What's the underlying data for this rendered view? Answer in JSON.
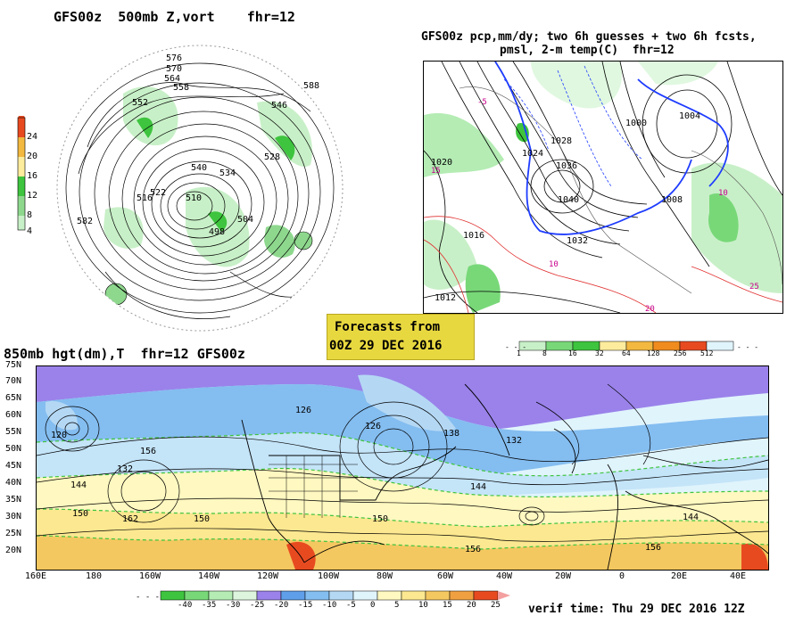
{
  "panel_500mb": {
    "title": "GFS00z  500mb Z,vort    fhr=12",
    "colorbar_ticks": [
      "24",
      "20",
      "16",
      "12",
      "8",
      "4"
    ],
    "contour_labels": [
      "576",
      "570",
      "564",
      "558",
      "552",
      "546",
      "540",
      "534",
      "528",
      "522",
      "516",
      "510",
      "504",
      "498",
      "582",
      "588"
    ]
  },
  "panel_precip": {
    "title_line1": "GFS00z pcp,mm/dy; two 6h guesses + two 6h fcsts,",
    "title_line2": "pmsl, 2-m temp(C)  fhr=12",
    "pressure_labels": [
      "1020",
      "1016",
      "1012",
      "1036",
      "1040",
      "1032",
      "1028",
      "1024",
      "1008",
      "1004",
      "1000"
    ],
    "colorbar_ticks": [
      "1",
      "8",
      "16",
      "32",
      "64",
      "128",
      "256",
      "512"
    ]
  },
  "forecast_box": {
    "line1": "Forecasts from",
    "line2": "00Z 29 DEC 2016"
  },
  "panel_850mb": {
    "title": "850mb hgt(dm),T  fhr=12 GFS00z",
    "lat_labels": [
      "75N",
      "70N",
      "65N",
      "60N",
      "55N",
      "50N",
      "45N",
      "40N",
      "35N",
      "30N",
      "25N",
      "20N"
    ],
    "lon_labels": [
      "160E",
      "180",
      "160W",
      "140W",
      "120W",
      "100W",
      "80W",
      "60W",
      "40W",
      "20W",
      "0",
      "20E",
      "40E"
    ],
    "height_labels": [
      "120",
      "126",
      "132",
      "138",
      "144",
      "150",
      "156",
      "162"
    ],
    "colorbar_ticks": [
      "-40",
      "-35",
      "-30",
      "-25",
      "-20",
      "-15",
      "-10",
      "-5",
      "0",
      "5",
      "10",
      "15",
      "20",
      "25"
    ],
    "colors": [
      "#3ec43e",
      "#78d878",
      "#b4ecb4",
      "#dcf5dc",
      "#9a82ea",
      "#5f9ee8",
      "#84bdf0",
      "#b4d8f4",
      "#e0f4fc",
      "#fff8c0",
      "#fce890",
      "#f4c860",
      "#f0a040",
      "#e84a20"
    ]
  },
  "verif_time": "verif time: Thu 29 DEC 2016 12Z"
}
